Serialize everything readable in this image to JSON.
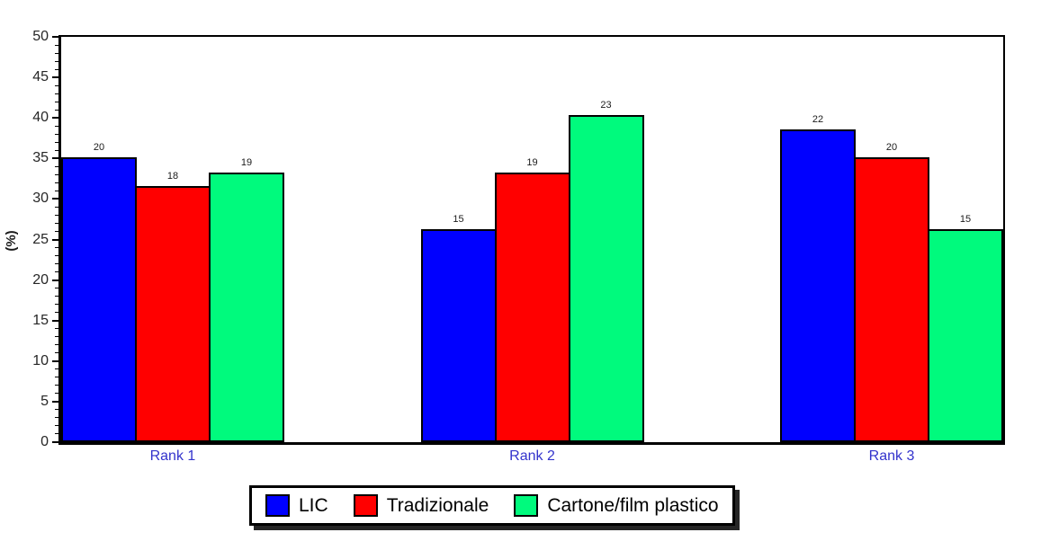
{
  "chart_data": {
    "type": "bar",
    "title": "",
    "xlabel": "",
    "ylabel": "(%)",
    "ylim": [
      0,
      50
    ],
    "y_major_ticks": [
      0,
      5,
      10,
      15,
      20,
      25,
      30,
      35,
      40,
      45,
      50
    ],
    "y_minor_tick_step": 1,
    "grid": false,
    "legend_position": "bottom",
    "categories": [
      "Rank 1",
      "Rank 2",
      "Rank 3"
    ],
    "series": [
      {
        "name": "LIC",
        "color": "#0000FF",
        "values": [
          35.1,
          26.3,
          38.6
        ],
        "bar_labels": [
          "20",
          "15",
          "22"
        ]
      },
      {
        "name": "Tradizionale",
        "color": "#FF0000",
        "values": [
          31.6,
          33.3,
          35.1
        ],
        "bar_labels": [
          "18",
          "19",
          "20"
        ]
      },
      {
        "name": "Cartone/film plastico",
        "color": "#00FA7D",
        "values": [
          33.3,
          40.4,
          26.3
        ],
        "bar_labels": [
          "19",
          "23",
          "15"
        ]
      }
    ]
  },
  "colors": {
    "category_label": "#3333CC",
    "axis_text": "#262626",
    "bar_border": "#000000",
    "plot_border": "#000000"
  }
}
